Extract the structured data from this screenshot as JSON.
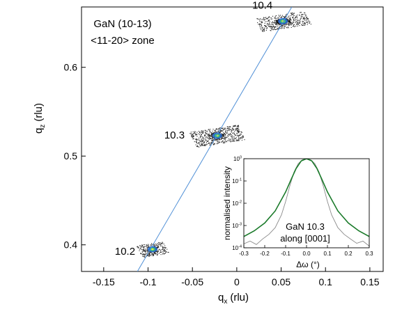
{
  "chart_data": {
    "type": "scatter",
    "title_lines": [
      "GaN (10-13)",
      "<11-20> zone"
    ],
    "xlabel": "q",
    "xlabel_sub": "x",
    "xlabel_unit": "(rlu)",
    "ylabel": "q",
    "ylabel_sub": "z",
    "ylabel_unit": "(rlu)",
    "xlim": [
      -0.175,
      0.165
    ],
    "ylim": [
      0.37,
      0.668
    ],
    "xticks": [
      -0.15,
      -0.1,
      -0.05,
      0,
      0.05,
      0.1,
      0.15
    ],
    "xtick_labels": [
      "-0.15",
      "-0.1",
      "-0.05",
      "0",
      "0.05",
      "0.1",
      "0.15"
    ],
    "yticks": [
      0.4,
      0.5,
      0.6
    ],
    "ytick_labels": [
      "0.4",
      "0.5",
      "0.6"
    ],
    "reflections": [
      {
        "label": "10.2",
        "qx": -0.095,
        "qz": 0.395
      },
      {
        "label": "10.3",
        "qx": -0.022,
        "qz": 0.523
      },
      {
        "label": "10.4",
        "qx": 0.052,
        "qz": 0.652
      }
    ],
    "guide_line": {
      "x": [
        -0.112,
        0.062
      ],
      "y": [
        0.37,
        0.668
      ],
      "color": "#4f8fd6"
    },
    "inset": {
      "xlabel": "Δω  (°)",
      "ylabel": "normalised intensity",
      "annotation_lines": [
        "GaN 10.3",
        "along [0001]"
      ],
      "xlim": [
        -0.3,
        0.3
      ],
      "xticks": [
        -0.3,
        -0.2,
        -0.1,
        0,
        0.1,
        0.2,
        0.3
      ],
      "xtick_labels": [
        "-0.3",
        "-0.2",
        "-0.1",
        "0.0",
        "0.1",
        "0.2",
        "0.3"
      ],
      "yscale": "log",
      "ylim_exponents": [
        -4,
        0
      ],
      "ytick_exponents": [
        0,
        -1,
        -2,
        -3,
        -4
      ],
      "series": [
        {
          "color": "#1a7a2a",
          "x": [
            -0.3,
            -0.25,
            -0.2,
            -0.15,
            -0.1,
            -0.075,
            -0.05,
            -0.025,
            0,
            0.025,
            0.05,
            0.075,
            0.1,
            0.15,
            0.2,
            0.25,
            0.3
          ],
          "y": [
            0.00032,
            0.00058,
            0.0013,
            0.0045,
            0.032,
            0.11,
            0.36,
            0.8,
            1.0,
            0.8,
            0.36,
            0.11,
            0.032,
            0.0045,
            0.0013,
            0.00058,
            0.00032
          ]
        },
        {
          "color": "#8a8a8a",
          "x": [
            -0.3,
            -0.27,
            -0.24,
            -0.21,
            -0.18,
            -0.15,
            -0.12,
            -0.1,
            -0.08,
            -0.06,
            -0.04,
            -0.02,
            0,
            0.02,
            0.04,
            0.06,
            0.08,
            0.1,
            0.12,
            0.15,
            0.18,
            0.21,
            0.24,
            0.27,
            0.3
          ],
          "y": [
            0.00015,
            0.0002,
            0.00014,
            0.00025,
            0.0004,
            0.0008,
            0.003,
            0.012,
            0.06,
            0.25,
            0.6,
            0.9,
            1.0,
            0.9,
            0.6,
            0.25,
            0.06,
            0.012,
            0.003,
            0.0008,
            0.0004,
            0.00025,
            0.00016,
            0.0002,
            0.00012
          ]
        }
      ]
    }
  }
}
